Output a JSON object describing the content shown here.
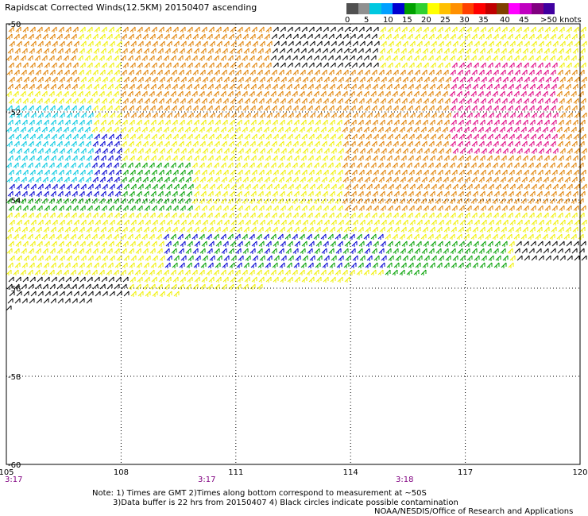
{
  "title": "Rapidscat Corrected Winds(12.5KM) 20150407 ascending",
  "legend": {
    "labels": [
      "0",
      "5",
      "10",
      "15",
      "20",
      "25",
      "30",
      "35",
      "40",
      "45",
      ">50 knots"
    ],
    "colors": [
      "#505050",
      "#909090",
      "#00c8e0",
      "#00a0ff",
      "#0000d0",
      "#00a000",
      "#30d030",
      "#ffff00",
      "#ffc000",
      "#ff9000",
      "#ff4000",
      "#ff0000",
      "#c00000",
      "#804000",
      "#ff00ff",
      "#c000c0",
      "#800080",
      "#4000a0"
    ]
  },
  "map": {
    "lon_ticks": [
      "105",
      "108",
      "111",
      "114",
      "117",
      "120"
    ],
    "lat_ticks": [
      "-50",
      "-52",
      "-54",
      "-56",
      "-58",
      "-60"
    ],
    "times": [
      "3:17",
      "3:17",
      "3:18"
    ]
  },
  "notes": {
    "line1": "Note: 1) Times are GMT 2)Times along bottom correspond to measurement at ~50S",
    "line2": "3)Data buffer is 22 hrs from 20150407 4) Black circles indicate possible contamination",
    "line3": "NOAA/NESDIS/Office of Research and Applications"
  },
  "wind_colors": {
    "calm": "#000000",
    "light": "#00c8e0",
    "moderate_blue": "#0000d0",
    "moderate_green": "#00a000",
    "fresh_yellow": "#f0f000",
    "strong_orange": "#e08000",
    "gale_red": "#e00040",
    "storm_magenta": "#e00080"
  }
}
